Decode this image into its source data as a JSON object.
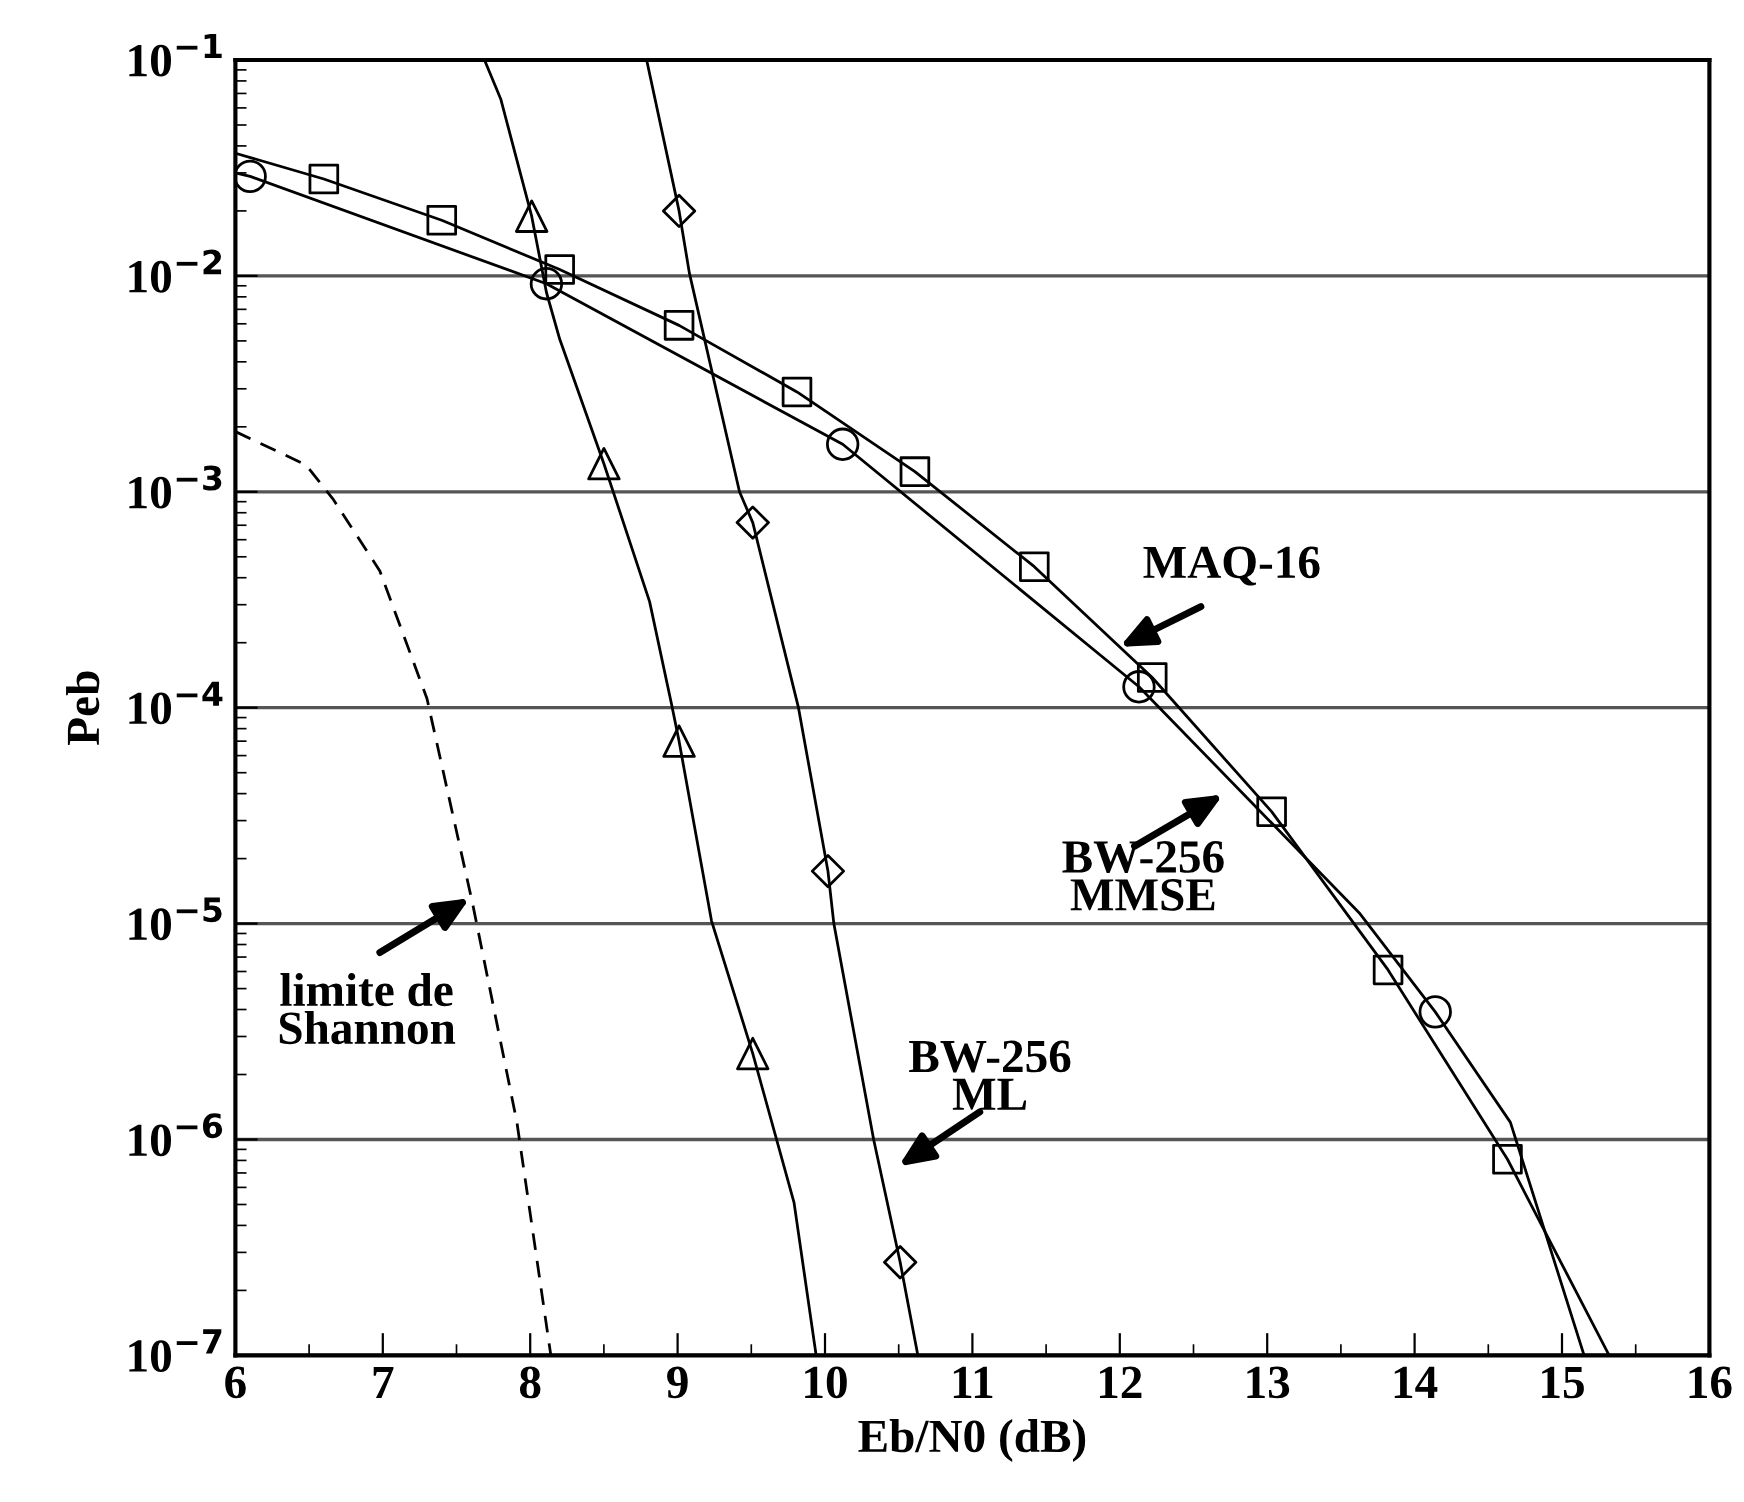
{
  "chart_data": {
    "type": "line",
    "xlabel": "Eb/N0 (dB)",
    "ylabel": "Peb",
    "log": "y",
    "xlim": [
      6,
      16
    ],
    "xticks": [
      6,
      7,
      8,
      9,
      10,
      11,
      12,
      13,
      14,
      15,
      16
    ],
    "ylim": [
      1e-07,
      0.1
    ],
    "yticks": [
      {
        "value": 1e-07,
        "label": "10$^{−7}$"
      },
      {
        "value": 1e-06,
        "label": "10$^{−6}$"
      },
      {
        "value": 1e-05,
        "label": "10$^{−5}$"
      },
      {
        "value": 0.0001,
        "label": "10$^{−4}$"
      },
      {
        "value": 0.001,
        "label": "10$^{−3}$"
      },
      {
        "value": 0.01,
        "label": "10$^{−2}$"
      },
      {
        "value": 0.1,
        "label": "10$^{−1}$"
      }
    ],
    "grid": "y",
    "legend": false,
    "series": [
      {
        "color": "#000000",
        "line_style": "solid",
        "x": [
          6,
          6.6,
          7.4,
          8.2,
          9.01,
          9.81,
          10.61,
          11.42,
          12.22,
          13.03,
          13.82,
          14.63,
          15.32
        ],
        "values": [
          0.037,
          0.0281,
          0.0181,
          0.0107,
          0.0059,
          0.0029,
          0.00124,
          0.00045,
          0.000138,
          3.3e-05,
          6.1e-06,
          8.1e-07,
          1e-07
        ]
      },
      {
        "type": "scatter",
        "color": "#000000",
        "marker": "square",
        "x": [
          6.6,
          7.4,
          8.2,
          9.01,
          9.81,
          10.61,
          11.42,
          12.22,
          13.03,
          13.82,
          14.63
        ],
        "values": [
          0.0281,
          0.0181,
          0.0107,
          0.0059,
          0.0029,
          0.00124,
          0.00045,
          0.000138,
          3.3e-05,
          6.1e-06,
          8.1e-07
        ]
      },
      {
        "color": "#000000",
        "line_style": "solid",
        "x": [
          6,
          6.1,
          8.11,
          10.12,
          12.13,
          13.63,
          14.14,
          14.65,
          15.15
        ],
        "values": [
          0.03,
          0.0289,
          0.0092,
          0.00166,
          0.000125,
          1.11e-05,
          3.9e-06,
          1.2e-06,
          1e-07
        ]
      },
      {
        "type": "scatter",
        "color": "#000000",
        "marker": "circle",
        "x": [
          6.1,
          8.11,
          10.12,
          12.13,
          14.14
        ],
        "values": [
          0.0289,
          0.0092,
          0.00166,
          0.000125,
          3.9e-06
        ]
      },
      {
        "color": "#000000",
        "line_style": "solid",
        "x": [
          7.69,
          7.8,
          8.01,
          8.11,
          8.2,
          8.5,
          8.81,
          8.96,
          9.01,
          9.23,
          9.51,
          9.79,
          9.94
        ],
        "values": [
          0.1,
          0.066,
          0.0189,
          0.0084,
          0.0051,
          0.00135,
          0.00031,
          0.000103,
          7e-05,
          1.03e-05,
          2.5e-06,
          5.1e-07,
          1e-07
        ]
      },
      {
        "type": "scatter",
        "color": "#000000",
        "marker": "triangle",
        "x": [
          8.01,
          8.5,
          9.01,
          9.51
        ],
        "values": [
          0.0189,
          0.00135,
          7e-05,
          2.5e-06
        ]
      },
      {
        "color": "#000000",
        "line_style": "solid",
        "x": [
          8.79,
          9.01,
          9.08,
          9.42,
          9.51,
          9.82,
          10.02,
          10.06,
          10.33,
          10.51,
          10.63
        ],
        "values": [
          0.1,
          0.02,
          0.0103,
          0.001,
          0.00072,
          0.0001,
          1.75e-05,
          1e-05,
          1e-06,
          2.7e-07,
          1e-07
        ]
      },
      {
        "type": "scatter",
        "color": "#000000",
        "marker": "diamond",
        "x": [
          9.01,
          9.51,
          10.02,
          10.51
        ],
        "values": [
          0.02,
          0.00072,
          1.75e-05,
          2.7e-07
        ]
      },
      {
        "color": "#000000",
        "line_style": "dashed",
        "x": [
          6.0,
          6.48,
          6.66,
          6.98,
          7.3,
          7.61,
          7.91,
          8.14
        ],
        "values": [
          0.0019,
          0.00133,
          0.00093,
          0.00043,
          0.00011,
          1.23e-05,
          1.2e-06,
          1e-07
        ]
      }
    ],
    "annotations": [
      "MAQ-16",
      "BW-256\nMMSE",
      "BW-256\nML",
      "limite de\nShannon"
    ]
  }
}
